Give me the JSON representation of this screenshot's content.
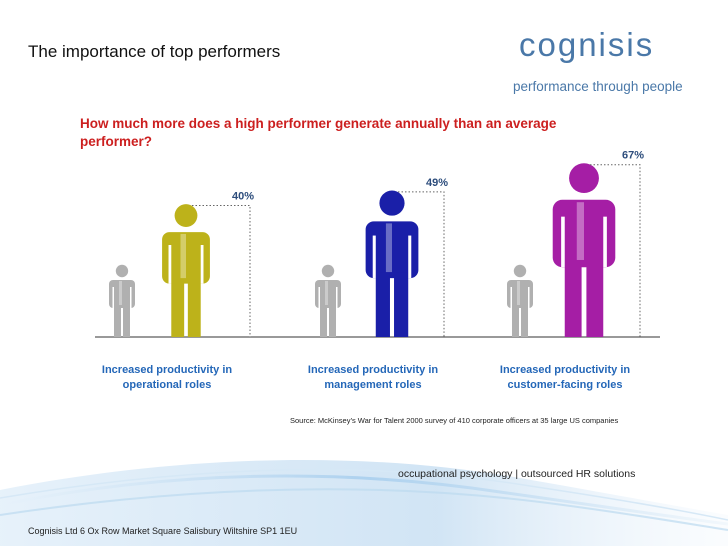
{
  "slide": {
    "title": "The importance of top performers",
    "question": "How much more does a high performer generate annually than an average performer?",
    "source": "Source: McKinsey’s War for Talent 2000 survey of 410 corporate officers at 35 large US companies",
    "tagline_bottom": "occupational psychology  |  outsourced HR solutions",
    "footer_address": "Cognisis Ltd    6 Ox Row  Market Square  Salisbury  Wiltshire  SP1 1EU"
  },
  "logo": {
    "wordmark": "cognisis",
    "tagline": "performance through people",
    "color": "#4a78a8"
  },
  "chart_data": {
    "type": "bar",
    "title": "How much more does a high performer generate annually than an average performer?",
    "categories": [
      "Increased productivity in operational roles",
      "Increased productivity in management roles",
      "Increased productivity in customer-facing roles"
    ],
    "series": [
      {
        "name": "",
        "values": [
          40,
          49,
          67
        ],
        "unit": "%"
      }
    ],
    "value_labels": [
      "40%",
      "49%",
      "67%"
    ],
    "high_performer_colors": [
      "#bdb21a",
      "#1a1fa8",
      "#a51ea5"
    ],
    "average_performer_color": "#b0b0b0",
    "xlabel": "",
    "ylabel": "",
    "grid": false,
    "legend": "none"
  }
}
